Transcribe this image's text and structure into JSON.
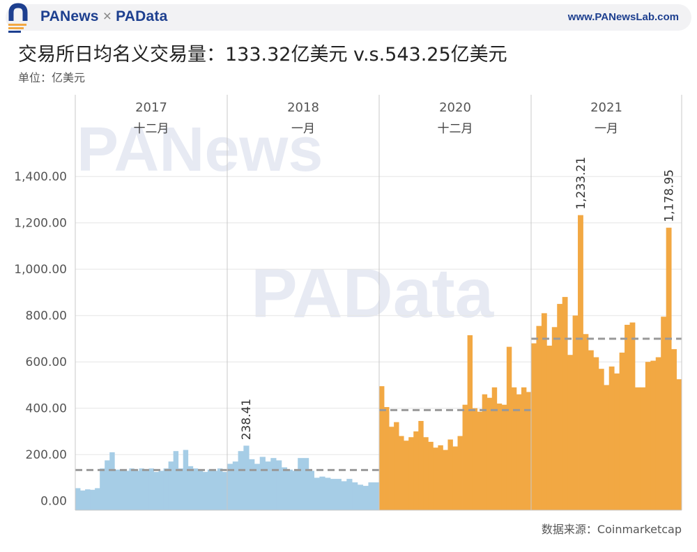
{
  "header": {
    "brand_left": "PANews",
    "brand_sep": "×",
    "brand_right": "PAData",
    "url": "www.PANewsLab.com"
  },
  "title": "交易所日均名义交易量：133.32亿美元 v.s.543.25亿美元",
  "unit": "单位：亿美元",
  "source": "数据来源：Coinmarketcap",
  "watermark_bottom": "PANews",
  "colors": {
    "bar_2017_2018": "#a6cde6",
    "bar_2020_2021": "#f2a843",
    "avg_line": "#999999",
    "grid": "#e6e6e6",
    "brand_blue": "#1d3f8f"
  },
  "chart_data": {
    "type": "bar",
    "ylim": [
      -40,
      1560
    ],
    "yticks": [
      "0.00",
      "200.00",
      "400.00",
      "600.00",
      "800.00",
      "1,000.00",
      "1,200.00",
      "1,400.00"
    ],
    "ytick_values": [
      0,
      200,
      400,
      600,
      800,
      1000,
      1200,
      1400
    ],
    "grid": true,
    "panels": [
      {
        "year": "2017",
        "month": "十二月",
        "color": "#a6cde6",
        "average": 133.32,
        "values": [
          55,
          45,
          50,
          48,
          55,
          140,
          175,
          210,
          135,
          135,
          130,
          140,
          130,
          140,
          135,
          140,
          125,
          130,
          140,
          170,
          215,
          140,
          220,
          150,
          140,
          130,
          125,
          135,
          130,
          140,
          125
        ],
        "labels": []
      },
      {
        "year": "2018",
        "month": "一月",
        "color": "#a6cde6",
        "average": 133.32,
        "values": [
          160,
          170,
          215,
          238.41,
          180,
          160,
          190,
          170,
          185,
          175,
          145,
          135,
          130,
          185,
          185,
          130,
          100,
          105,
          100,
          95,
          95,
          85,
          95,
          80,
          70,
          65,
          80,
          80
        ],
        "labels": [
          {
            "index": 3,
            "text": "238.41"
          }
        ]
      },
      {
        "year": "2020",
        "month": "十二月",
        "color": "#f2a843",
        "average": 392,
        "values": [
          495,
          405,
          320,
          340,
          280,
          260,
          275,
          300,
          345,
          275,
          255,
          230,
          240,
          220,
          265,
          235,
          280,
          415,
          715,
          400,
          385,
          460,
          445,
          490,
          420,
          415,
          665,
          490,
          460,
          490,
          470
        ],
        "labels": []
      },
      {
        "year": "2021",
        "month": "一月",
        "color": "#f2a843",
        "average": 700,
        "values": [
          680,
          755,
          810,
          670,
          750,
          850,
          880,
          630,
          800,
          1233.21,
          720,
          650,
          620,
          570,
          500,
          580,
          550,
          640,
          760,
          770,
          490,
          490,
          600,
          605,
          620,
          795,
          1178.95,
          655,
          525
        ],
        "labels": [
          {
            "index": 9,
            "text": "1,233.21"
          },
          {
            "index": 26,
            "text": "1,178.95"
          }
        ]
      }
    ]
  }
}
